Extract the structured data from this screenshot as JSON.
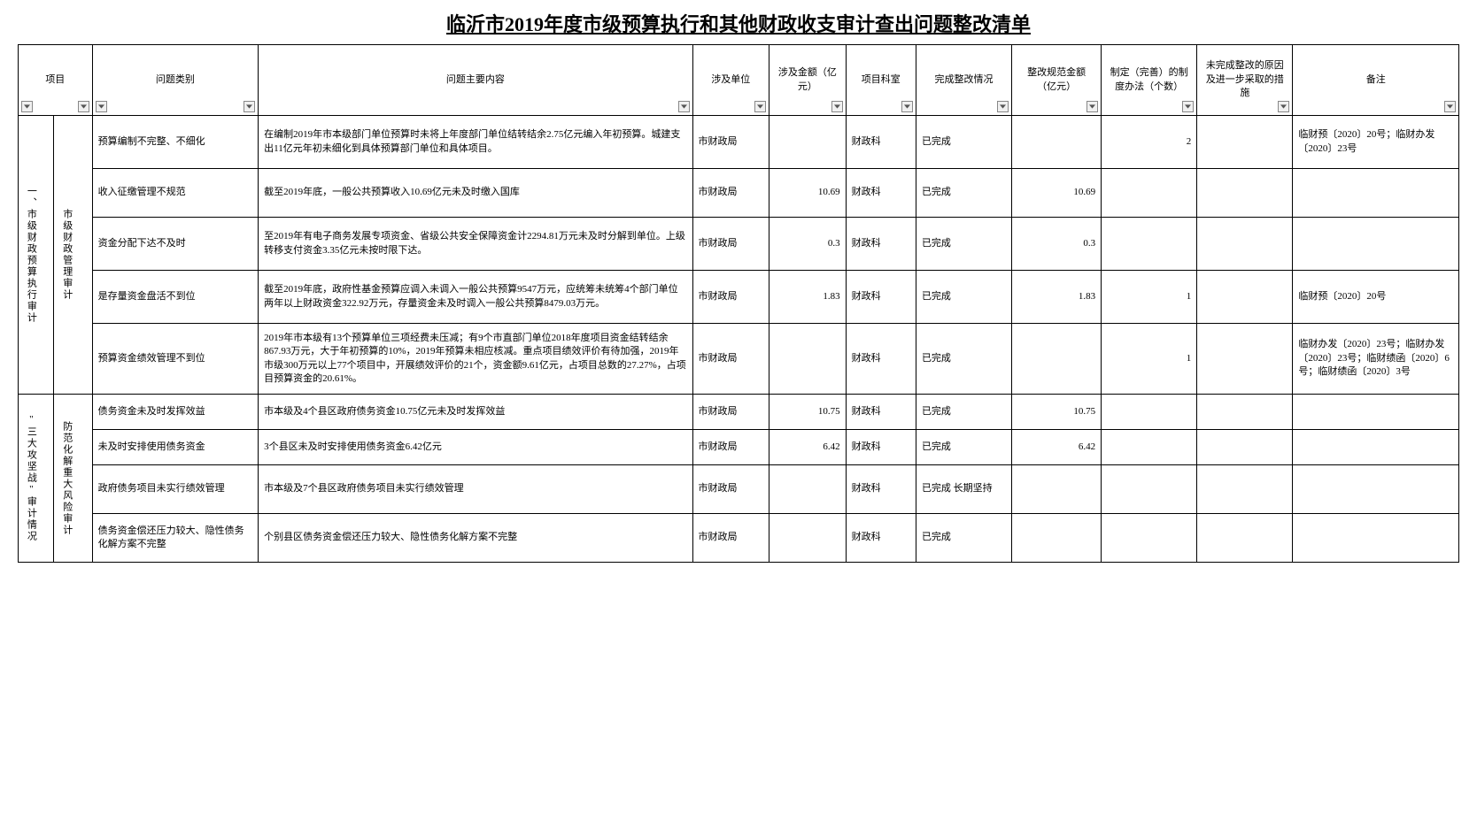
{
  "title": "临沂市2019年度市级预算执行和其他财政收支审计查出问题整改清单",
  "headers": {
    "project": "项目",
    "category": "问题类别",
    "content": "问题主要内容",
    "unit": "涉及单位",
    "amount": "涉及金额（亿元）",
    "dept": "项目科室",
    "status": "完成整改情况",
    "regAmount": "整改规范金额（亿元）",
    "methods": "制定（完善）的制度办法（个数）",
    "reason": "未完成整改的原因及进一步采取的措施",
    "remark": "备注"
  },
  "group1": {
    "proj": "一、市级财政预算执行审计",
    "sub": "市级财政管理审计",
    "rows": [
      {
        "cat": "预算编制不完整、不细化",
        "content": "在编制2019年市本级部门单位预算时未将上年度部门单位结转结余2.75亿元编入年初预算。城建支出11亿元年初未细化到具体预算部门单位和具体项目。",
        "unit": "市财政局",
        "amount": "",
        "dept": "财政科",
        "status": "已完成",
        "regAmount": "",
        "methods": "2",
        "reason": "",
        "remark": "临财预〔2020〕20号；临财办发〔2020〕23号"
      },
      {
        "cat": "收入征缴管理不规范",
        "content": "截至2019年底，一般公共预算收入10.69亿元未及时缴入国库",
        "unit": "市财政局",
        "amount": "10.69",
        "dept": "财政科",
        "status": "已完成",
        "regAmount": "10.69",
        "methods": "",
        "reason": "",
        "remark": ""
      },
      {
        "cat": "资金分配下达不及时",
        "content": "至2019年有电子商务发展专项资金、省级公共安全保障资金计2294.81万元未及时分解到单位。上级转移支付资金3.35亿元未按时限下达。",
        "unit": "市财政局",
        "amount": "0.3",
        "dept": "财政科",
        "status": "已完成",
        "regAmount": "0.3",
        "methods": "",
        "reason": "",
        "remark": ""
      },
      {
        "cat": "是存量资金盘活不到位",
        "content": "截至2019年底，政府性基金预算应调入未调入一般公共预算9547万元，应统筹未统筹4个部门单位两年以上财政资金322.92万元，存量资金未及时调入一般公共预算8479.03万元。",
        "unit": "市财政局",
        "amount": "1.83",
        "dept": "财政科",
        "status": "已完成",
        "regAmount": "1.83",
        "methods": "1",
        "reason": "",
        "remark": "临财预〔2020〕20号"
      },
      {
        "cat": "预算资金绩效管理不到位",
        "content": "2019年市本级有13个预算单位三项经费未压减；有9个市直部门单位2018年度项目资金结转结余867.93万元，大于年初预算的10%，2019年预算未相应核减。重点项目绩效评价有待加强，2019年市级300万元以上77个项目中，开展绩效评价的21个，资金额9.61亿元，占项目总数的27.27%，占项目预算资金的20.61%。",
        "unit": "市财政局",
        "amount": "",
        "dept": "财政科",
        "status": "已完成",
        "regAmount": "",
        "methods": "1",
        "reason": "",
        "remark": "临财办发〔2020〕23号；临财办发〔2020〕23号；临财绩函〔2020〕6号；临财绩函〔2020〕3号"
      }
    ]
  },
  "group2": {
    "proj": "\"三大攻坚战\"审计情况",
    "sub": "防范化解重大风险审计",
    "rows": [
      {
        "cat": "债务资金未及时发挥效益",
        "content": "市本级及4个县区政府债务资金10.75亿元未及时发挥效益",
        "unit": "市财政局",
        "amount": "10.75",
        "dept": "财政科",
        "status": "已完成",
        "regAmount": "10.75",
        "methods": "",
        "reason": "",
        "remark": ""
      },
      {
        "cat": "未及时安排使用债务资金",
        "content": "3个县区未及时安排使用债务资金6.42亿元",
        "unit": "市财政局",
        "amount": "6.42",
        "dept": "财政科",
        "status": "已完成",
        "regAmount": "6.42",
        "methods": "",
        "reason": "",
        "remark": ""
      },
      {
        "cat": "政府债务项目未实行绩效管理",
        "content": "市本级及7个县区政府债务项目未实行绩效管理",
        "unit": "市财政局",
        "amount": "",
        "dept": "财政科",
        "status": "已完成   长期坚持",
        "regAmount": "",
        "methods": "",
        "reason": "",
        "remark": ""
      },
      {
        "cat": "债务资金偿还压力较大、隐性债务化解方案不完整",
        "content": "个别县区债务资金偿还压力较大、隐性债务化解方案不完整",
        "unit": "市财政局",
        "amount": "",
        "dept": "财政科",
        "status": "已完成",
        "regAmount": "",
        "methods": "",
        "reason": "",
        "remark": ""
      }
    ]
  }
}
